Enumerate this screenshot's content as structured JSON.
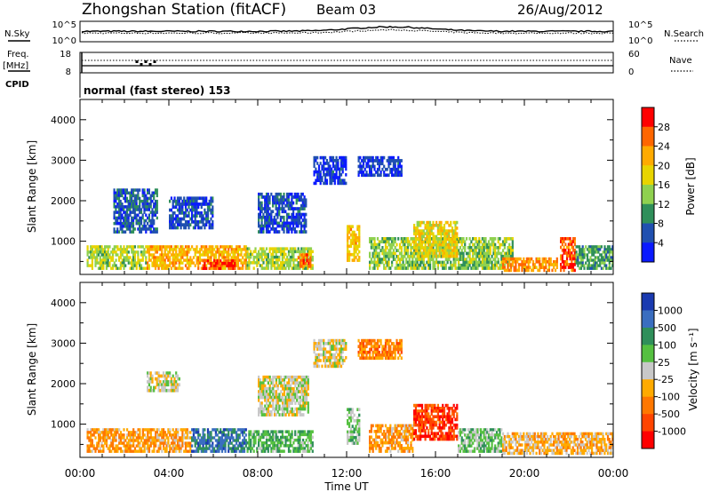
{
  "header": {
    "station": "Zhongshan Station (fitACF)",
    "beam": "Beam 03",
    "date": "26/Aug/2012"
  },
  "top_panels": {
    "nsky_label": "N.Sky",
    "nsky_ticks": [
      "10^5",
      "10^0"
    ],
    "nsearch_label": "N.Search",
    "nsearch_ticks": [
      "10^5",
      "10^0"
    ],
    "freq_label": "Freq.",
    "freq_unit": "[MHz]",
    "freq_ticks": [
      "18",
      "8"
    ],
    "nave_label": "Nave",
    "nave_ticks": [
      "60",
      "0"
    ],
    "cpid_label": "CPID",
    "cpid_text": "normal (fast stereo) 153"
  },
  "colorbars": {
    "power": {
      "label": "Power [dB]",
      "ticks": [
        "28",
        "24",
        "20",
        "16",
        "12",
        "8",
        "4"
      ],
      "colors": [
        "#ff0000",
        "#ff6600",
        "#ffaa00",
        "#e8d400",
        "#8fd14f",
        "#2f8f5a",
        "#2050b0",
        "#0a1aff"
      ]
    },
    "velocity": {
      "label": "Velocity [m s⁻¹]",
      "ticks": [
        "1000",
        "500",
        "100",
        "25",
        "-25",
        "-100",
        "-500",
        "-1000"
      ],
      "colors": [
        "#1a3ab0",
        "#3a6ec0",
        "#2f8f5a",
        "#55c040",
        "#c8c8c8",
        "#ffaa00",
        "#ff7700",
        "#ff4400",
        "#ff0000"
      ]
    }
  },
  "chart_data": [
    {
      "type": "heatmap",
      "name": "power",
      "ylabel": "Slant Range [km]",
      "yticks": [
        "4000",
        "3000",
        "2000",
        "1000"
      ],
      "ylim": [
        180,
        4500
      ],
      "x_range_hours": [
        0,
        24
      ],
      "zlim": [
        0,
        30
      ],
      "regions": [
        {
          "t0": 0.3,
          "t1": 3.0,
          "r0": 300,
          "r1": 900,
          "z": 14
        },
        {
          "t0": 3.0,
          "t1": 7.5,
          "r0": 300,
          "r1": 900,
          "z": 20
        },
        {
          "t0": 5.5,
          "t1": 7.0,
          "r0": 300,
          "r1": 550,
          "z": 27
        },
        {
          "t0": 7.5,
          "t1": 10.5,
          "r0": 300,
          "r1": 850,
          "z": 14
        },
        {
          "t0": 9.8,
          "t1": 10.4,
          "r0": 350,
          "r1": 700,
          "z": 25
        },
        {
          "t0": 12.0,
          "t1": 12.6,
          "r0": 500,
          "r1": 1400,
          "z": 19
        },
        {
          "t0": 13.0,
          "t1": 19.5,
          "r0": 300,
          "r1": 1100,
          "z": 13
        },
        {
          "t0": 15.0,
          "t1": 17.0,
          "r0": 600,
          "r1": 1500,
          "z": 17
        },
        {
          "t0": 19.0,
          "t1": 21.5,
          "r0": 250,
          "r1": 600,
          "z": 22
        },
        {
          "t0": 21.6,
          "t1": 22.3,
          "r0": 250,
          "r1": 1100,
          "z": 25
        },
        {
          "t0": 22.3,
          "t1": 24.0,
          "r0": 300,
          "r1": 900,
          "z": 10
        },
        {
          "t0": 1.5,
          "t1": 3.5,
          "r0": 1200,
          "r1": 2300,
          "z": 6
        },
        {
          "t0": 4.0,
          "t1": 6.0,
          "r0": 1300,
          "r1": 2100,
          "z": 5
        },
        {
          "t0": 8.0,
          "t1": 10.2,
          "r0": 1200,
          "r1": 2200,
          "z": 5
        },
        {
          "t0": 10.5,
          "t1": 12.0,
          "r0": 2400,
          "r1": 3100,
          "z": 4
        },
        {
          "t0": 12.5,
          "t1": 14.5,
          "r0": 2600,
          "r1": 3100,
          "z": 4
        }
      ]
    },
    {
      "type": "heatmap",
      "name": "velocity",
      "ylabel": "Slant Range [km]",
      "yticks": [
        "4000",
        "3000",
        "2000",
        "1000"
      ],
      "ylim": [
        180,
        4500
      ],
      "x_range_hours": [
        0,
        24
      ],
      "zlim": [
        -1000,
        1000
      ],
      "xticks": [
        "00:00",
        "04:00",
        "08:00",
        "12:00",
        "16:00",
        "20:00",
        "00:00"
      ],
      "xlabel": "Time UT",
      "regions": [
        {
          "t0": 0.3,
          "t1": 5.0,
          "r0": 300,
          "r1": 900,
          "z": -300
        },
        {
          "t0": 5.0,
          "t1": 7.5,
          "r0": 300,
          "r1": 900,
          "z": 600
        },
        {
          "t0": 7.5,
          "t1": 10.5,
          "r0": 300,
          "r1": 850,
          "z": 300
        },
        {
          "t0": 12.0,
          "t1": 12.6,
          "r0": 500,
          "r1": 1400,
          "z": 150
        },
        {
          "t0": 13.0,
          "t1": 15.0,
          "r0": 300,
          "r1": 1000,
          "z": -300
        },
        {
          "t0": 15.0,
          "t1": 17.0,
          "r0": 600,
          "r1": 1500,
          "z": -700
        },
        {
          "t0": 17.0,
          "t1": 19.0,
          "r0": 300,
          "r1": 900,
          "z": 200
        },
        {
          "t0": 19.0,
          "t1": 24.0,
          "r0": 250,
          "r1": 800,
          "z": -200
        },
        {
          "t0": 3.0,
          "t1": 4.5,
          "r0": 1800,
          "r1": 2300,
          "z": 0
        },
        {
          "t0": 8.0,
          "t1": 10.3,
          "r0": 1200,
          "r1": 2200,
          "z": 0
        },
        {
          "t0": 10.5,
          "t1": 12.0,
          "r0": 2400,
          "r1": 3100,
          "z": -60
        },
        {
          "t0": 12.5,
          "t1": 14.5,
          "r0": 2600,
          "r1": 3100,
          "z": -400
        }
      ]
    }
  ]
}
